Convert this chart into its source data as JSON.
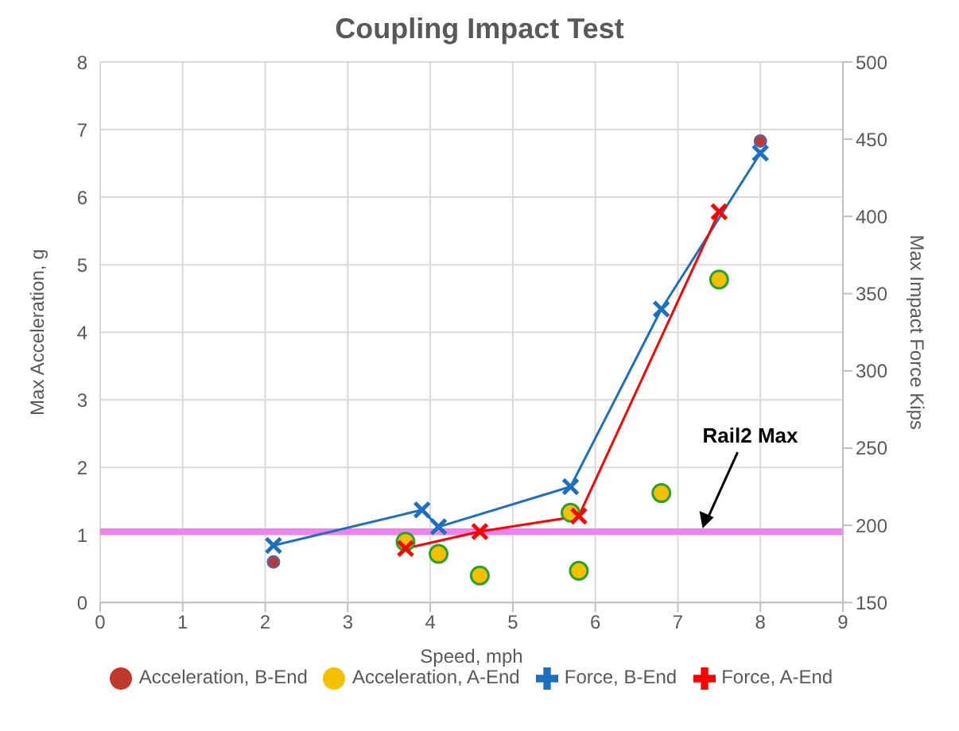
{
  "chart_data": {
    "type": "scatter",
    "title": "Coupling Impact Test",
    "xlabel": "Speed, mph",
    "ylabel": "Max Acceleration, g",
    "y2label": "Max Impact Force Kips",
    "xlim": [
      0,
      9
    ],
    "xticks": [
      0,
      1,
      2,
      3,
      4,
      5,
      6,
      7,
      8,
      9
    ],
    "ylim": [
      0,
      8
    ],
    "yticks": [
      0,
      1,
      2,
      3,
      4,
      5,
      6,
      7,
      8
    ],
    "y2lim": [
      150,
      500
    ],
    "y2ticks": [
      150,
      200,
      250,
      300,
      350,
      400,
      450,
      500
    ],
    "grid": true,
    "legend": "bottom",
    "series": [
      {
        "name": "Acceleration, B-End",
        "marker": "circle",
        "color": "#c0392b",
        "x": [
          2.1,
          8.0
        ],
        "values": [
          0.6,
          6.83
        ]
      },
      {
        "name": "Acceleration, A-End",
        "marker": "circle",
        "color": "#f5c000",
        "x": [
          3.7,
          4.1,
          4.6,
          5.7,
          5.8,
          6.8,
          7.5
        ],
        "values": [
          0.9,
          0.72,
          0.4,
          1.33,
          0.47,
          1.62,
          4.78
        ]
      },
      {
        "name": "Force, B-End",
        "type": "line",
        "marker": "cross",
        "axis": "y2",
        "color": "#1f6fbf",
        "x": [
          2.1,
          3.9,
          4.1,
          5.7,
          6.8,
          8.0
        ],
        "values": [
          187,
          210,
          199,
          225,
          340,
          441
        ]
      },
      {
        "name": "Force, A-End",
        "type": "line",
        "marker": "cross",
        "axis": "y2",
        "color": "#ff0000",
        "x": [
          3.7,
          4.6,
          5.8,
          7.5
        ],
        "values": [
          185,
          196,
          206,
          403
        ]
      }
    ],
    "ref_lines": [
      {
        "axis": "y",
        "value": 1.05,
        "color": "#ee82ee"
      }
    ],
    "annotations": [
      {
        "text": "Rail2 Max",
        "x": 7.3,
        "y": 1.05
      }
    ]
  }
}
